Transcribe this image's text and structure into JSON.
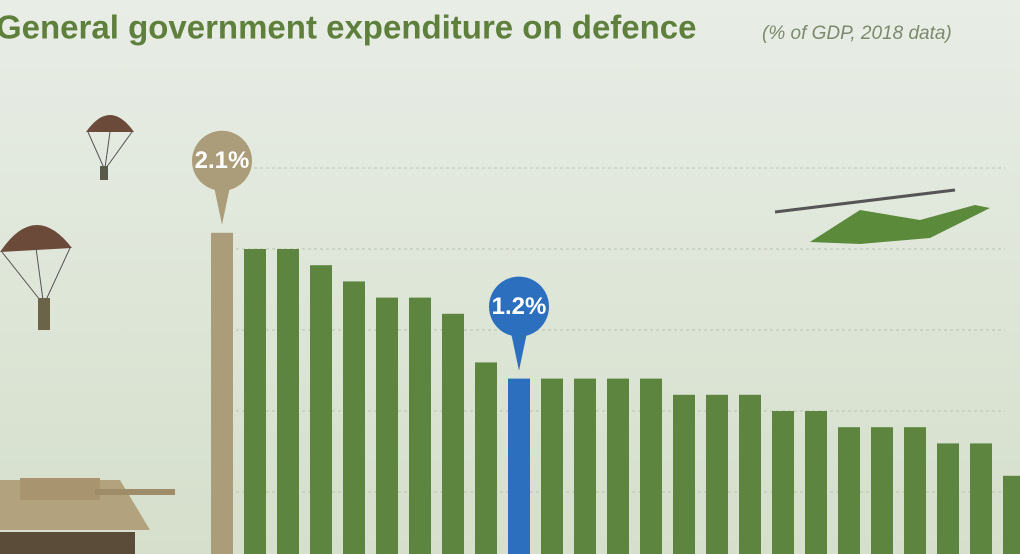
{
  "chart_data": {
    "type": "bar",
    "title": "General government expenditure on defence",
    "subtitle": "(% of GDP, 2018 data)",
    "values": [
      2.1,
      2.0,
      2.0,
      1.9,
      1.8,
      1.7,
      1.7,
      1.6,
      1.3,
      1.2,
      1.2,
      1.2,
      1.2,
      1.2,
      1.1,
      1.1,
      1.1,
      1.0,
      1.0,
      0.9,
      0.9,
      0.9,
      0.8,
      0.8,
      0.6
    ],
    "value_labels": [
      "2.1%",
      null,
      null,
      null,
      null,
      null,
      null,
      null,
      null,
      "1.2%",
      null,
      null,
      null,
      null,
      null,
      null,
      null,
      null,
      null,
      null,
      null,
      null,
      null,
      null,
      null
    ],
    "colors": [
      "#ab9d7a",
      "#5e8540",
      "#5e8540",
      "#5e8540",
      "#5e8540",
      "#5e8540",
      "#5e8540",
      "#5e8540",
      "#5e8540",
      "#2d6fbf",
      "#5e8540",
      "#5e8540",
      "#5e8540",
      "#5e8540",
      "#5e8540",
      "#5e8540",
      "#5e8540",
      "#5e8540",
      "#5e8540",
      "#5e8540",
      "#5e8540",
      "#5e8540",
      "#5e8540",
      "#5e8540",
      "#5e8540"
    ],
    "ylim": [
      0,
      2.5
    ],
    "yticks": [
      0.5,
      1,
      1.5,
      2,
      2.5
    ],
    "grid": true
  }
}
